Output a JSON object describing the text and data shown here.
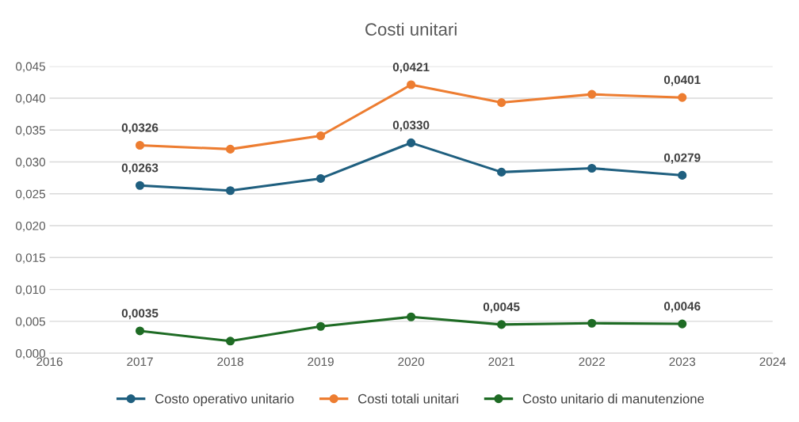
{
  "chart_data": {
    "type": "line",
    "title": "Costi unitari",
    "x": [
      2017,
      2018,
      2019,
      2020,
      2021,
      2022,
      2023
    ],
    "series": [
      {
        "name": "Costo operativo unitario",
        "color": "#1f5f7f",
        "values": [
          0.0263,
          0.0255,
          0.0274,
          0.033,
          0.0284,
          0.029,
          0.0279
        ],
        "value_labels": [
          "0,0263",
          null,
          null,
          "0,0330",
          null,
          null,
          "0,0279"
        ]
      },
      {
        "name": "Costi totali unitari",
        "color": "#ed7d31",
        "values": [
          0.0326,
          0.032,
          0.0341,
          0.0421,
          0.0393,
          0.0406,
          0.0401
        ],
        "value_labels": [
          "0,0326",
          null,
          null,
          "0,0421",
          null,
          null,
          "0,0401"
        ]
      },
      {
        "name": "Costo unitario di manutenzione",
        "color": "#1e6b24",
        "values": [
          0.0035,
          0.0019,
          0.0042,
          0.0057,
          0.0045,
          0.0047,
          0.0046
        ],
        "value_labels": [
          "0,0035",
          null,
          null,
          null,
          "0,0045",
          null,
          "0,0046"
        ]
      }
    ],
    "xlim": [
      2016,
      2024
    ],
    "xticks": [
      2016,
      2017,
      2018,
      2019,
      2020,
      2021,
      2022,
      2023,
      2024
    ],
    "ylim": [
      0,
      0.045
    ],
    "yticks": [
      {
        "value": 0,
        "label": "0,000"
      },
      {
        "value": 0.005,
        "label": "0,005"
      },
      {
        "value": 0.01,
        "label": "0,010"
      },
      {
        "value": 0.015,
        "label": "0,015"
      },
      {
        "value": 0.02,
        "label": "0,020"
      },
      {
        "value": 0.025,
        "label": "0,025"
      },
      {
        "value": 0.03,
        "label": "0,030"
      },
      {
        "value": 0.035,
        "label": "0,035"
      },
      {
        "value": 0.04,
        "label": "0,040"
      },
      {
        "value": 0.045,
        "label": "0,045"
      }
    ],
    "grid": "y",
    "legend": "bottom",
    "marker": "circle",
    "line_style": "solid"
  }
}
